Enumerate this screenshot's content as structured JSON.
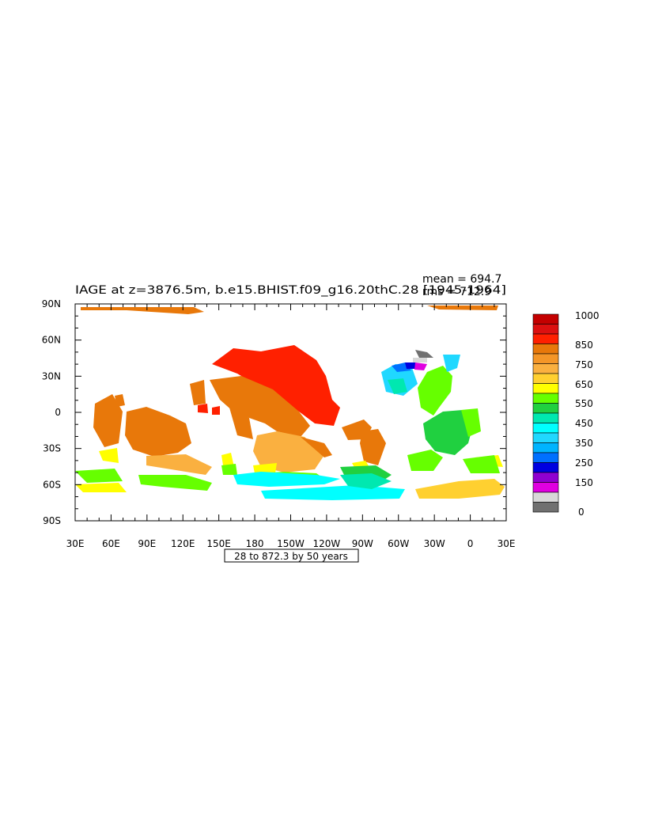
{
  "title": "IAGE at z=3876.5m, b.e15.BHIST.f09_g16.20thC.28 [1945-1964]",
  "stats": {
    "mean": "mean = 694.7",
    "rms": "rms = 712.9"
  },
  "axes": {
    "x_ticks": [
      "30E",
      "60E",
      "90E",
      "120E",
      "150E",
      "180",
      "150W",
      "120W",
      "90W",
      "60W",
      "30W",
      "0",
      "30E"
    ],
    "y_ticks": [
      "90N",
      "60N",
      "30N",
      "0",
      "30S",
      "60S",
      "90S"
    ]
  },
  "contour_info": "28 to 872.3 by 50 years",
  "colorbar": {
    "labels": [
      "1000",
      "850",
      "750",
      "650",
      "550",
      "450",
      "350",
      "250",
      "150",
      "0"
    ],
    "colors": [
      "#c40000",
      "#dc1010",
      "#ff2000",
      "#e8780a",
      "#f49628",
      "#fab040",
      "#ffd030",
      "#ffff00",
      "#66ff00",
      "#20d040",
      "#00e8b0",
      "#00ffff",
      "#20d8ff",
      "#00b4ff",
      "#0070ff",
      "#0000e0",
      "#9000d0",
      "#e000e0",
      "#d8d8d8",
      "#707070"
    ]
  },
  "map_colors": {
    "red": "#ff2000",
    "orange": "#e8780a",
    "lightorange": "#fab040",
    "yellow": "#ffff00",
    "gold": "#ffd030",
    "green": "#66ff00",
    "midgreen": "#20d040",
    "teal": "#00e8b0",
    "cyan": "#00ffff",
    "skyblue": "#20d8ff",
    "blue": "#0070ff",
    "darkblue": "#0000e0",
    "magenta": "#e000e0",
    "purple": "#9000d0",
    "gray": "#707070",
    "lightgray": "#d8d8d8"
  }
}
